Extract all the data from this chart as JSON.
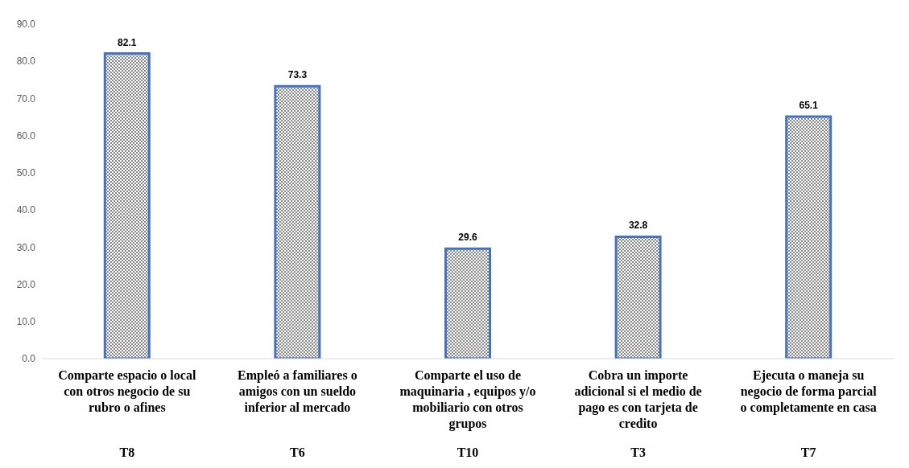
{
  "chart_data": {
    "type": "bar",
    "categories": [
      "Comparte espacio o local con otros negocio de su rubro o afines",
      "Empleó a familiares o amigos con un sueldo inferior al mercado",
      "Comparte el uso de maquinaria , equipos y/o mobiliario con otros grupos",
      "Cobra un importe adicional si el medio de pago es con tarjeta de credito",
      "Ejecuta o maneja su negocio de forma parcial o completamente en casa"
    ],
    "values": [
      82.1,
      73.3,
      29.6,
      32.8,
      65.1
    ],
    "color": "#4472c4",
    "data_labels": true,
    "ylim": [
      0,
      90
    ],
    "yticks": [
      {
        "value": 0,
        "label": "0.0"
      },
      {
        "value": 10,
        "label": "10.0"
      },
      {
        "value": 20,
        "label": "20.0"
      },
      {
        "value": 30,
        "label": "30.0"
      },
      {
        "value": 40,
        "label": "40.0"
      },
      {
        "value": 50,
        "label": "50.0"
      },
      {
        "value": 60,
        "label": "60.0"
      },
      {
        "value": 70,
        "label": "70.0"
      },
      {
        "value": 80,
        "label": "80.0"
      },
      {
        "value": 90,
        "label": "90.0"
      }
    ],
    "grid": false,
    "legend": false,
    "annotations": [
      "T8",
      "T6",
      "T10",
      "T3",
      "T7"
    ]
  }
}
